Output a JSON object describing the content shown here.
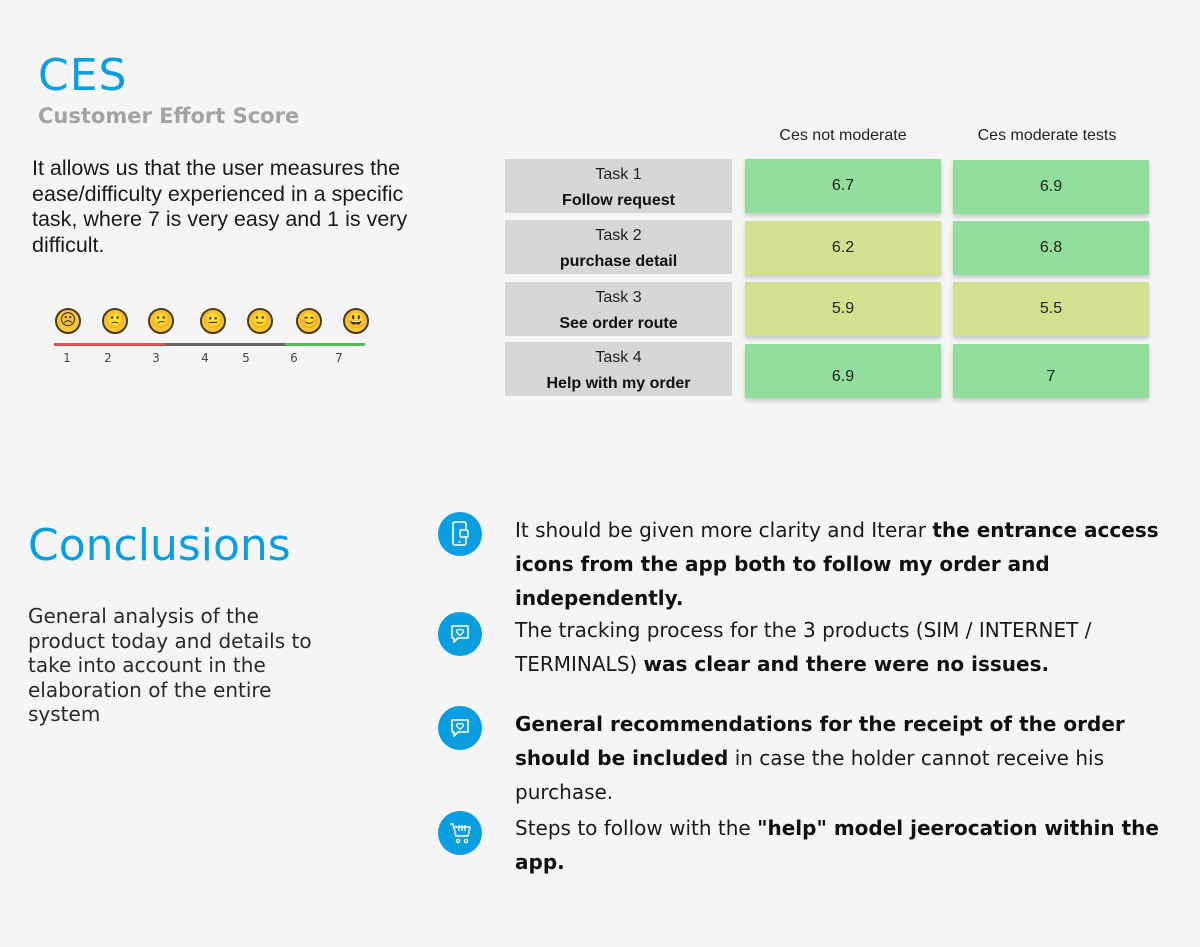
{
  "ces": {
    "title": "CES",
    "subtitle": "Customer Effort Score",
    "description": "It allows us that the user measures the ease/difficulty experienced in a specific task, where 7 is very easy and 1 is very difficult."
  },
  "scale": {
    "numbers": [
      "1",
      "2",
      "3",
      "4",
      "5",
      "6",
      "7"
    ],
    "faces": [
      "☹",
      "🙁",
      "😕",
      "😐",
      "🙂",
      "😊",
      "😃"
    ],
    "colors": {
      "low": "#d9534f",
      "mid": "#666666",
      "high": "#5cb85c"
    }
  },
  "table": {
    "col1": "Ces not moderate",
    "col2": "Ces moderate tests",
    "rows": [
      {
        "task": "Task 1",
        "name": "Follow request",
        "v1": "6.7",
        "v2": "6.9",
        "c1": "#90dd9c",
        "c2": "#90dd9c"
      },
      {
        "task": "Task 2",
        "name": "purchase detail",
        "v1": "6.2",
        "v2": "6.8",
        "c1": "#d4e08f",
        "c2": "#90dd9c"
      },
      {
        "task": "Task 3",
        "name": "See order route",
        "v1": "5.9",
        "v2": "5.5",
        "c1": "#d4e08f",
        "c2": "#d4e08f"
      },
      {
        "task": "Task 4",
        "name": "Help with my order",
        "v1": "6.9",
        "v2": "7",
        "c1": "#90dd9c",
        "c2": "#90dd9c"
      }
    ]
  },
  "conclusions": {
    "title": "Conclusions",
    "description": "General analysis of the product today and details to take into account in the elaboration of the entire system",
    "items": [
      {
        "icon": "mobile-phone-icon",
        "p1": "It should be given more clarity and Iterar ",
        "b1": "the entrance access icons from the app both to follow my order and independently.",
        "p2": ""
      },
      {
        "icon": "heart-chat-icon",
        "p1": "The tracking process for the 3 products (SIM / INTERNET / TERMINALS) ",
        "b1": "was clear and there were no issues.",
        "p2": ""
      },
      {
        "icon": "heart-chat-icon",
        "p1": "",
        "b1": "General recommendations for the receipt of the order should be included",
        "p2": "  in case the holder cannot receive his purchase."
      },
      {
        "icon": "shopping-cart-icon",
        "p1": "Steps to follow with the  ",
        "b1": "\"help\" model jeerocation within the app.",
        "p2": ""
      }
    ]
  },
  "accent": "#0b9ee0"
}
